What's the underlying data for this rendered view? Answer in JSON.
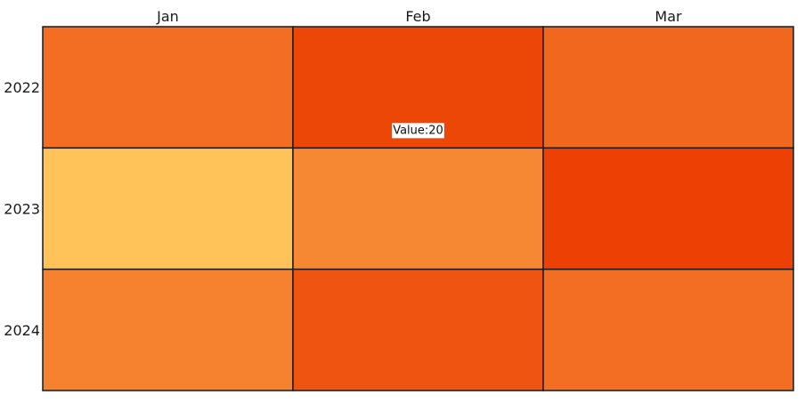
{
  "chart_data": {
    "type": "heatmap",
    "x_categories": [
      "Jan",
      "Feb",
      "Mar"
    ],
    "y_categories": [
      "2022",
      "2023",
      "2024"
    ],
    "values": [
      [
        14,
        20,
        15
      ],
      [
        1,
        10,
        21
      ],
      [
        11,
        18,
        14
      ]
    ],
    "colors": {
      "low": "#ffc35a",
      "high": "#ec4004",
      "cell_border": "#1a1a1a",
      "tooltip_bg": "#ffffff"
    },
    "tooltip": {
      "label": "Value:20",
      "row": 0,
      "col": 1
    },
    "legend": "none",
    "grid": true
  }
}
